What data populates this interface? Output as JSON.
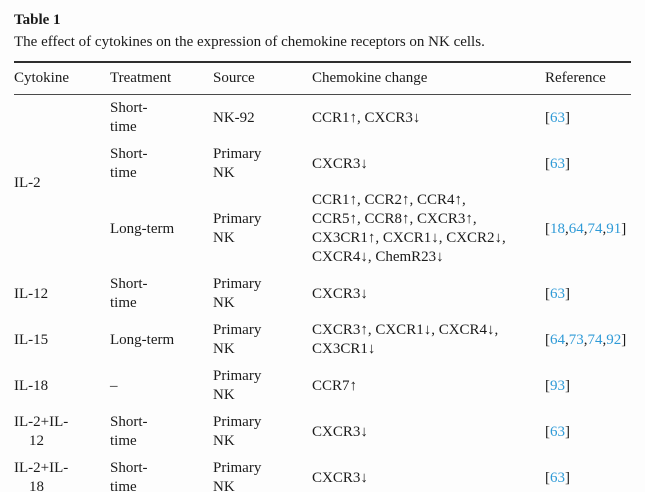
{
  "colors": {
    "text": "#1b1b1b",
    "citation_link": "#2e9ad7",
    "rule": "#2e2e2e",
    "background": "#fdfdfd"
  },
  "table": {
    "label": "Table 1",
    "caption": "The effect of cytokines on the expression of chemokine receptors on NK cells.",
    "headers": [
      "Cytokine",
      "Treatment",
      "Source",
      "Chemokine change",
      "Reference"
    ],
    "rows": [
      {
        "cytokine": "IL-2",
        "cytokine_rowspan": 3,
        "treatment": "Short-\ntime",
        "source": "NK-92",
        "change": "CCR1↑, CXCR3↓",
        "refs": [
          "63"
        ]
      },
      {
        "treatment": "Short-\ntime",
        "source": "Primary\nNK",
        "change": "CXCR3↓",
        "refs": [
          "63"
        ]
      },
      {
        "treatment": "Long-term",
        "source": "Primary\nNK",
        "change": "CCR1↑, CCR2↑, CCR4↑,\nCCR5↑, CCR8↑, CXCR3↑,\nCX3CR1↑, CXCR1↓, CXCR2↓,\nCXCR4↓, ChemR23↓",
        "refs": [
          "18",
          "64",
          "74",
          "91"
        ]
      },
      {
        "cytokine": "IL-12",
        "treatment": "Short-\ntime",
        "source": "Primary\nNK",
        "change": "CXCR3↓",
        "refs": [
          "63"
        ]
      },
      {
        "cytokine": "IL-15",
        "treatment": "Long-term",
        "source": "Primary\nNK",
        "change": "CXCR3↑, CXCR1↓, CXCR4↓,\nCX3CR1↓",
        "refs": [
          "64",
          "73",
          "74",
          "92"
        ]
      },
      {
        "cytokine": "IL-18",
        "treatment": "–",
        "source": "Primary\nNK",
        "change": "CCR7↑",
        "refs": [
          "93"
        ]
      },
      {
        "cytokine": "IL-2+IL-\n    12",
        "treatment": "Short-\ntime",
        "source": "Primary\nNK",
        "change": "CXCR3↓",
        "refs": [
          "63"
        ]
      },
      {
        "cytokine": "IL-2+IL-\n    18",
        "treatment": "Short-\ntime",
        "source": "Primary\nNK",
        "change": "CXCR3↓",
        "refs": [
          "63"
        ]
      }
    ]
  }
}
